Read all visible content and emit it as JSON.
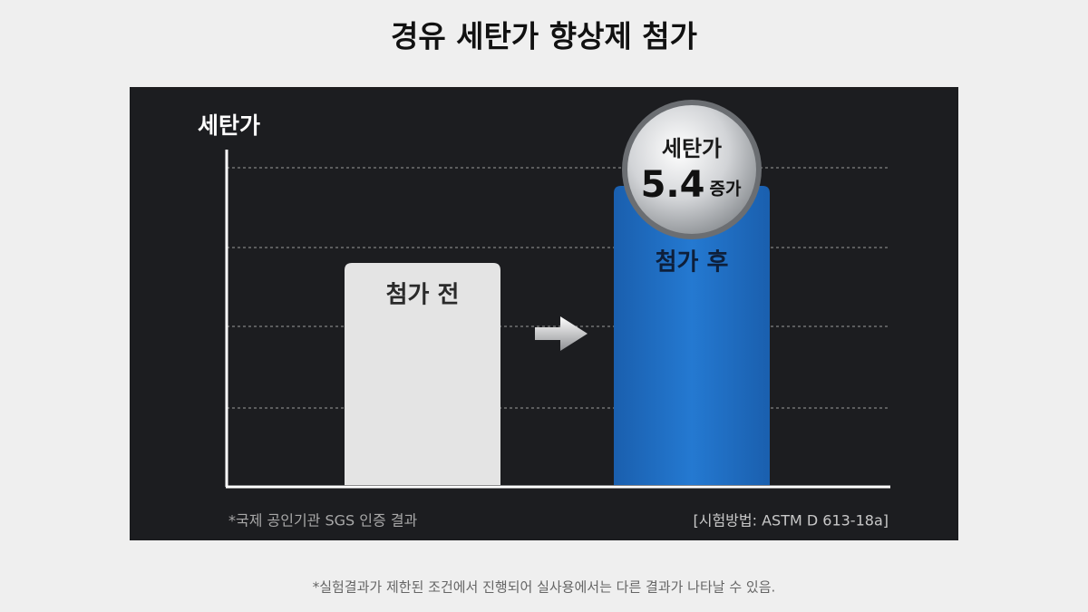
{
  "title": "경유 세탄가 향상제 첨가",
  "panel": {
    "axis_label": "세탄가",
    "bars": [
      {
        "label": "첨가 전"
      },
      {
        "label": "첨가 후"
      }
    ],
    "badge": {
      "label": "세탄가",
      "value": 5.4,
      "unit": "증가"
    },
    "source_note": "*국제 공인기관 SGS 인증 결과",
    "method_note": "[시험방법: ASTM D 613-18a]"
  },
  "footnote": "*실험결과가 제한된 조건에서 진행되어 실사용에서는 다른 결과가 나타날 수 있음."
}
